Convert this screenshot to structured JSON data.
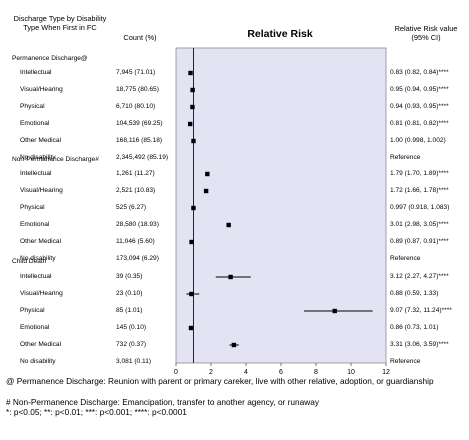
{
  "headers": {
    "col1": "Discharge Type by Disability Type When First in FC",
    "col2": "Count (%)",
    "col3": "Relative Risk",
    "col4": "Relative Risk value (95% CI)"
  },
  "groups": [
    "Permanence Discharge@",
    "Non-Permanence Discharge#",
    "Child Death"
  ],
  "chart_data": {
    "type": "forest",
    "title": "Relative Risk",
    "xlim": [
      0,
      12
    ],
    "xticks": [
      0,
      2,
      4,
      6,
      8,
      10,
      12
    ],
    "reference_line": 1,
    "rows": [
      {
        "group": "Permanence Discharge@",
        "label": "Intellectual",
        "count": "7,945 (71.01)",
        "rr_text": "0.83 (0.82, 0.84)****",
        "rr": 0.83,
        "lo": 0.82,
        "hi": 0.84
      },
      {
        "group": "Permanence Discharge@",
        "label": "Visual/Hearing",
        "count": "18,775 (80.65)",
        "rr_text": "0.95 (0.94, 0.95)****",
        "rr": 0.95,
        "lo": 0.94,
        "hi": 0.95
      },
      {
        "group": "Permanence Discharge@",
        "label": "Physical",
        "count": "6,710 (80.10)",
        "rr_text": "0.94 (0.93, 0.95)****",
        "rr": 0.94,
        "lo": 0.93,
        "hi": 0.95
      },
      {
        "group": "Permanence Discharge@",
        "label": "Emotional",
        "count": "104,539 (69.25)",
        "rr_text": "0.81 (0.81, 0.82)****",
        "rr": 0.81,
        "lo": 0.81,
        "hi": 0.82
      },
      {
        "group": "Permanence Discharge@",
        "label": "Other Medical",
        "count": "168,116 (85.18)",
        "rr_text": "1.00 (0.998, 1.002)",
        "rr": 1.0,
        "lo": 0.998,
        "hi": 1.002
      },
      {
        "group": "Permanence Discharge@",
        "label": "No disability",
        "count": "2,345,492 (85.19)",
        "rr_text": "Reference",
        "rr": null,
        "lo": null,
        "hi": null
      },
      {
        "group": "Non-Permanence Discharge#",
        "label": "Intellectual",
        "count": "1,261 (11.27)",
        "rr_text": "1.79 (1.70, 1.89)****",
        "rr": 1.79,
        "lo": 1.7,
        "hi": 1.89
      },
      {
        "group": "Non-Permanence Discharge#",
        "label": "Visual/Hearing",
        "count": "2,521 (10.83)",
        "rr_text": "1.72 (1.66, 1.78)****",
        "rr": 1.72,
        "lo": 1.66,
        "hi": 1.78
      },
      {
        "group": "Non-Permanence Discharge#",
        "label": "Physical",
        "count": "525 (6.27)",
        "rr_text": "0.997 (0.918, 1.083)",
        "rr": 0.997,
        "lo": 0.918,
        "hi": 1.083
      },
      {
        "group": "Non-Permanence Discharge#",
        "label": "Emotional",
        "count": "28,580 (18.93)",
        "rr_text": "3.01 (2.98, 3.05)****",
        "rr": 3.01,
        "lo": 2.98,
        "hi": 3.05
      },
      {
        "group": "Non-Permanence Discharge#",
        "label": "Other Medical",
        "count": "11,046 (5.60)",
        "rr_text": "0.89 (0.87, 0.91)****",
        "rr": 0.89,
        "lo": 0.87,
        "hi": 0.91
      },
      {
        "group": "Non-Permanence Discharge#",
        "label": "No disability",
        "count": "173,094 (6.29)",
        "rr_text": "Reference",
        "rr": null,
        "lo": null,
        "hi": null
      },
      {
        "group": "Child Death",
        "label": "Intellectual",
        "count": "39 (0.35)",
        "rr_text": "3.12 (2.27, 4.27)****",
        "rr": 3.12,
        "lo": 2.27,
        "hi": 4.27
      },
      {
        "group": "Child Death",
        "label": "Visual/Hearing",
        "count": "23 (0.10)",
        "rr_text": "0.88 (0.59, 1.33)",
        "rr": 0.88,
        "lo": 0.59,
        "hi": 1.33
      },
      {
        "group": "Child Death",
        "label": "Physical",
        "count": "85 (1.01)",
        "rr_text": "9.07 (7.32, 11.24)****",
        "rr": 9.07,
        "lo": 7.32,
        "hi": 11.24
      },
      {
        "group": "Child Death",
        "label": "Emotional",
        "count": "145 (0.10)",
        "rr_text": "0.86 (0.73, 1.01)",
        "rr": 0.86,
        "lo": 0.73,
        "hi": 1.01
      },
      {
        "group": "Child Death",
        "label": "Other Medical",
        "count": "732 (0.37)",
        "rr_text": "3.31 (3.06, 3.59)****",
        "rr": 3.31,
        "lo": 3.06,
        "hi": 3.59
      },
      {
        "group": "Child Death",
        "label": "No disability",
        "count": "3,081 (0.11)",
        "rr_text": "Reference",
        "rr": null,
        "lo": null,
        "hi": null
      }
    ]
  },
  "footnotes": {
    "line1": "@ Permanence Discharge: Reunion with parent or primary careker, live with other relative, adoption, or guardianship",
    "line2": "# Non-Permanence Discharge: Emancipation, transfer to another agency, or runaway",
    "line3": "*: p<0.05; **: p<0.01; ***: p<0.001; ****: p<0.0001"
  },
  "colors": {
    "plot_bg": "#e3e3f3",
    "marker": "#000000",
    "border": "#8c8c8c"
  }
}
